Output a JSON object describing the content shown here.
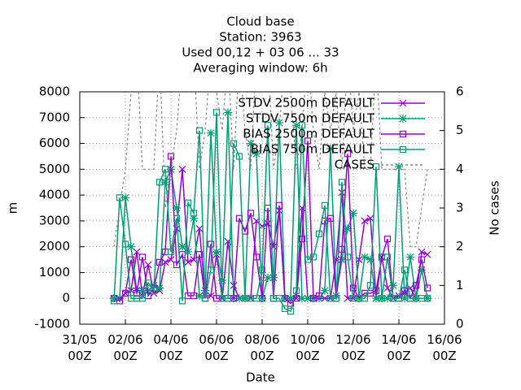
{
  "chart_data": {
    "type": "line",
    "title": [
      "Cloud base",
      "Station:     3963",
      "Used  00,12  + 03 06 ... 33",
      "Averaging window:  6h"
    ],
    "x_label": "Date",
    "y_label": "m",
    "y2_label": "No cases",
    "xlim": [
      0,
      384
    ],
    "xticks": [
      {
        "value": 0,
        "label": "31/05 00Z"
      },
      {
        "value": 48,
        "label": "02/06 00Z"
      },
      {
        "value": 96,
        "label": "04/06 00Z"
      },
      {
        "value": 144,
        "label": "06/06 00Z"
      },
      {
        "value": 192,
        "label": "08/06 00Z"
      },
      {
        "value": 240,
        "label": "10/06 00Z"
      },
      {
        "value": 288,
        "label": "12/06 00Z"
      },
      {
        "value": 336,
        "label": "14/06 00Z"
      },
      {
        "value": 384,
        "label": "16/06 00Z"
      }
    ],
    "ylim": [
      -1000,
      8000
    ],
    "yticks": [
      -1000,
      0,
      1000,
      2000,
      3000,
      4000,
      5000,
      6000,
      7000,
      8000
    ],
    "y2lim": [
      0,
      6
    ],
    "y2ticks": [
      0,
      1,
      2,
      3,
      4,
      5,
      6
    ],
    "grid": true,
    "x": [
      36,
      42,
      48,
      54,
      60,
      66,
      72,
      78,
      84,
      90,
      96,
      102,
      108,
      114,
      120,
      126,
      132,
      138,
      144,
      150,
      156,
      162,
      168,
      174,
      180,
      186,
      192,
      198,
      204,
      210,
      216,
      222,
      228,
      234,
      240,
      246,
      252,
      258,
      264,
      270,
      276,
      282,
      288,
      294,
      300,
      306,
      312,
      318,
      324,
      330,
      336,
      342,
      348,
      354,
      360,
      366
    ],
    "series": [
      {
        "name": "STDV 2500m DEFAULT",
        "color": "#9400d3",
        "marker": "cross",
        "values": [
          0,
          0,
          200,
          300,
          1800,
          100,
          1300,
          200,
          300,
          1400,
          1500,
          2700,
          5000,
          1400,
          1500,
          2700,
          100,
          100,
          1700,
          0,
          2200,
          500,
          0,
          0,
          0,
          3000,
          2800,
          2900,
          2000,
          3400,
          0,
          0,
          0,
          3500,
          0,
          0,
          0,
          0,
          0,
          1500,
          4100,
          0,
          0,
          1500,
          3000,
          3100,
          0,
          1600,
          400,
          0,
          100,
          200,
          400,
          0,
          1800,
          1700
        ]
      },
      {
        "name": "STDV 750m DEFAULT",
        "color": "#009e73",
        "marker": "star",
        "values": [
          0,
          0,
          3900,
          2000,
          300,
          300,
          300,
          500,
          400,
          4500,
          5000,
          3500,
          2000,
          1800,
          3100,
          100,
          300,
          6400,
          1800,
          700,
          7200,
          0,
          0,
          0,
          6000,
          5600,
          0,
          800,
          800,
          6800,
          0,
          0,
          6700,
          0,
          0,
          0,
          0,
          300,
          5800,
          100,
          1500,
          2700,
          3300,
          0,
          1600,
          1500,
          0,
          0,
          0,
          500,
          5100,
          0,
          1600,
          0,
          1100,
          0
        ]
      },
      {
        "name": "BIAS 2500m DEFAULT",
        "color": "#9400d3",
        "marker": "square",
        "values": [
          0,
          -100,
          200,
          1500,
          200,
          1600,
          100,
          400,
          1400,
          1800,
          5500,
          1300,
          1700,
          100,
          100,
          1700,
          0,
          2100,
          0,
          0,
          0,
          0,
          3100,
          2600,
          3300,
          1600,
          0,
          3500,
          0,
          3600,
          0,
          -200,
          0,
          2300,
          6100,
          0,
          100,
          3000,
          3100,
          0,
          1900,
          5600,
          400,
          0,
          200,
          200,
          300,
          1600,
          2300,
          0,
          0,
          300,
          0,
          500,
          1500,
          400
        ]
      },
      {
        "name": "BIAS 750m DEFAULT",
        "color": "#009e73",
        "marker": "square",
        "values": [
          -100,
          3900,
          2100,
          0,
          0,
          0,
          600,
          300,
          4500,
          5000,
          1800,
          3100,
          -100,
          3700,
          3300,
          6500,
          0,
          1100,
          7200,
          0,
          0,
          6000,
          5500,
          0,
          0,
          0,
          1100,
          6700,
          0,
          0,
          -400,
          -500,
          300,
          6700,
          1500,
          1600,
          2500,
          3600,
          0,
          0,
          4500,
          1600,
          0,
          0,
          0,
          500,
          5100,
          0,
          1600,
          0,
          0,
          1100,
          0,
          0,
          0,
          0
        ]
      },
      {
        "name": "CASES",
        "color": "#888888",
        "marker": "none",
        "dash": true,
        "axis": "y2",
        "values": [
          2,
          3,
          4,
          6,
          7,
          4,
          4,
          4,
          7,
          3,
          4,
          5,
          7,
          6,
          7,
          4,
          5,
          7,
          6,
          5,
          7,
          4,
          7,
          5,
          4,
          7,
          6,
          7,
          4,
          5,
          7,
          6,
          4,
          5,
          7,
          5,
          4,
          6,
          5,
          6,
          4,
          7,
          5,
          6,
          4,
          4,
          7,
          4,
          4,
          4,
          4,
          4,
          2,
          2,
          3,
          4
        ]
      }
    ]
  }
}
